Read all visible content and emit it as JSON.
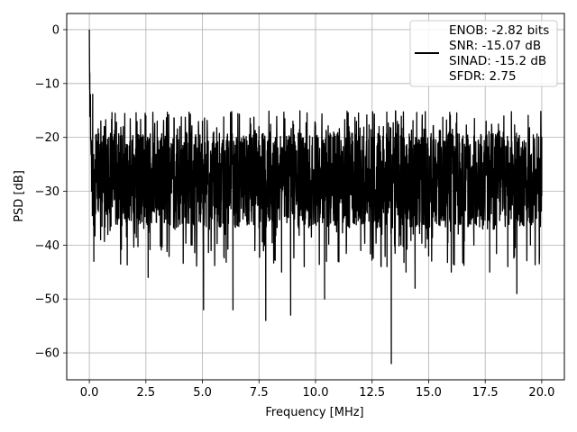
{
  "chart_data": {
    "type": "line",
    "title": "",
    "xlabel": "Frequency [MHz]",
    "ylabel": "PSD [dB]",
    "xlim": [
      -1.0,
      21.0
    ],
    "ylim": [
      -65,
      3
    ],
    "x_ticks": [
      0.0,
      2.5,
      5.0,
      7.5,
      10.0,
      12.5,
      15.0,
      17.5,
      20.0
    ],
    "x_tick_labels": [
      "0.0",
      "2.5",
      "5.0",
      "7.5",
      "10.0",
      "12.5",
      "15.0",
      "17.5",
      "20.0"
    ],
    "y_ticks": [
      0,
      -10,
      -20,
      -30,
      -40,
      -50,
      -60
    ],
    "y_tick_labels": [
      "0",
      "−10",
      "−20",
      "−30",
      "−40",
      "−50",
      "−60"
    ],
    "grid": true,
    "legend_placement": "top-right",
    "line_color": "#000000",
    "series": [
      {
        "name": "",
        "x_range": [
          0.0,
          20.0
        ],
        "approx_points": [
          [
            0.0,
            0.0
          ],
          [
            0.02,
            -8
          ],
          [
            0.05,
            -15
          ],
          [
            0.1,
            -30
          ],
          [
            0.15,
            -12
          ],
          [
            0.2,
            -43
          ],
          [
            0.3,
            -20
          ],
          [
            0.5,
            -39
          ],
          [
            0.7,
            -18
          ],
          [
            0.9,
            -34
          ],
          [
            1.0,
            -17
          ],
          [
            1.2,
            -35
          ],
          [
            1.5,
            -18
          ],
          [
            2.0,
            -32
          ],
          [
            2.5,
            -16
          ],
          [
            2.6,
            -46
          ],
          [
            3.0,
            -17
          ],
          [
            3.5,
            -36
          ],
          [
            4.0,
            -18
          ],
          [
            4.5,
            -40
          ],
          [
            5.0,
            -17
          ],
          [
            5.05,
            -52
          ],
          [
            5.5,
            -19
          ],
          [
            6.0,
            -38
          ],
          [
            6.3,
            -17
          ],
          [
            6.35,
            -52
          ],
          [
            6.5,
            -20
          ],
          [
            7.0,
            -36
          ],
          [
            7.5,
            -18
          ],
          [
            7.8,
            -54
          ],
          [
            8.0,
            -19
          ],
          [
            8.5,
            -45
          ],
          [
            8.9,
            -53
          ],
          [
            9.0,
            -17
          ],
          [
            9.5,
            -44
          ],
          [
            10.0,
            -18
          ],
          [
            10.4,
            -50
          ],
          [
            10.8,
            -19
          ],
          [
            11.0,
            -43
          ],
          [
            11.5,
            -19
          ],
          [
            12.0,
            -41
          ],
          [
            12.5,
            -20
          ],
          [
            12.9,
            -44
          ],
          [
            13.0,
            -18
          ],
          [
            13.35,
            -62
          ],
          [
            13.5,
            -20
          ],
          [
            14.0,
            -45
          ],
          [
            14.4,
            -48
          ],
          [
            14.8,
            -21
          ],
          [
            15.0,
            -42
          ],
          [
            15.5,
            -19
          ],
          [
            16.0,
            -45
          ],
          [
            16.5,
            -21
          ],
          [
            17.0,
            -40
          ],
          [
            17.3,
            -20
          ],
          [
            17.7,
            -45
          ],
          [
            18.0,
            -20
          ],
          [
            18.5,
            -44
          ],
          [
            18.9,
            -49
          ],
          [
            19.3,
            -21
          ],
          [
            19.5,
            -40
          ],
          [
            19.9,
            -42
          ],
          [
            20.0,
            -20
          ]
        ],
        "noise_band": {
          "upper_db": -20,
          "lower_db": -36
        }
      }
    ],
    "legend": {
      "enob": "ENOB: -2.82 bits",
      "snr": "SNR: -15.07 dB",
      "sinad": "SINAD: -15.2 dB",
      "sfdr": "SFDR: 2.75"
    }
  }
}
